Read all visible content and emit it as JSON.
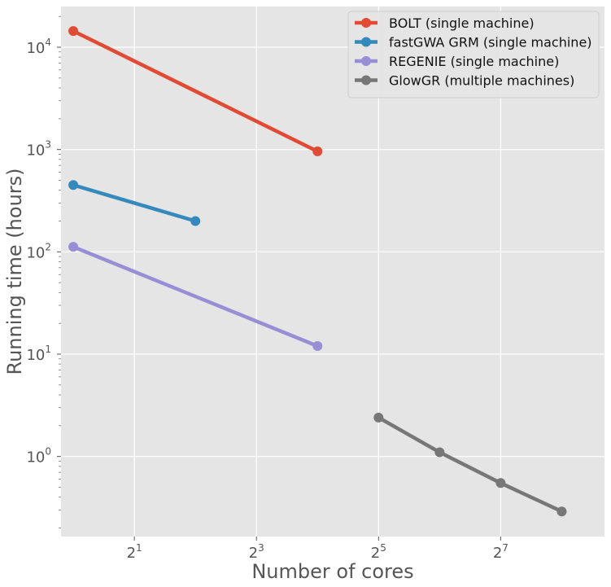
{
  "chart_data": {
    "type": "line",
    "xlabel": "Number of cores",
    "ylabel": "Running time (hours)",
    "x_scale": "log2",
    "y_scale": "log10",
    "xlim": [
      0.87,
      416
    ],
    "ylim": [
      0.165,
      25000
    ],
    "x_ticks": [
      {
        "value": 2,
        "base": "2",
        "exp": "1"
      },
      {
        "value": 8,
        "base": "2",
        "exp": "3"
      },
      {
        "value": 32,
        "base": "2",
        "exp": "5"
      },
      {
        "value": 128,
        "base": "2",
        "exp": "7"
      }
    ],
    "y_ticks": [
      {
        "value": 1,
        "base": "10",
        "exp": "0"
      },
      {
        "value": 10,
        "base": "10",
        "exp": "1"
      },
      {
        "value": 100,
        "base": "10",
        "exp": "2"
      },
      {
        "value": 1000,
        "base": "10",
        "exp": "3"
      },
      {
        "value": 10000,
        "base": "10",
        "exp": "4"
      }
    ],
    "grid": true,
    "legend_position": "top-right",
    "series": [
      {
        "name": "BOLT (single machine)",
        "color": "#E24A33",
        "points": [
          [
            1,
            14400
          ],
          [
            16,
            960
          ]
        ]
      },
      {
        "name": "fastGWA GRM (single machine)",
        "color": "#348ABD",
        "points": [
          [
            1,
            450
          ],
          [
            4,
            200
          ]
        ]
      },
      {
        "name": "REGENIE (single machine)",
        "color": "#988ED5",
        "points": [
          [
            1,
            112
          ],
          [
            16,
            12
          ]
        ]
      },
      {
        "name": "GlowGR (multiple machines)",
        "color": "#777777",
        "points": [
          [
            32,
            2.4
          ],
          [
            64,
            1.1
          ],
          [
            128,
            0.55
          ],
          [
            256,
            0.29
          ]
        ]
      }
    ]
  }
}
